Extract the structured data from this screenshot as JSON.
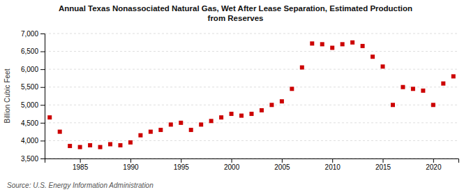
{
  "chart_data": {
    "type": "scatter",
    "title": "Annual Texas Nonassociated Natural Gas, Wet After Lease Separation, Estimated Production\nfrom Reserves",
    "ylabel": "Billion Cubic Feet",
    "annotations": [
      "Source: U.S. Energy Information Administration"
    ],
    "color": "#cc0000",
    "marker": "square",
    "grid": true,
    "xlim": [
      1981.5,
      2022.5
    ],
    "xticks": [
      1985,
      1990,
      1995,
      2000,
      2005,
      2010,
      2015,
      2020
    ],
    "ylim": [
      3500,
      7000
    ],
    "yticks": [
      {
        "value": 3500,
        "label": "3,500"
      },
      {
        "value": 4000,
        "label": "4,000"
      },
      {
        "value": 4500,
        "label": "4,500"
      },
      {
        "value": 5000,
        "label": "5,000"
      },
      {
        "value": 5500,
        "label": "5,500"
      },
      {
        "value": 6000,
        "label": "6,000"
      },
      {
        "value": 6500,
        "label": "6,500"
      },
      {
        "value": 7000,
        "label": "7,000"
      }
    ],
    "x": [
      1982,
      1983,
      1984,
      1985,
      1986,
      1987,
      1988,
      1989,
      1990,
      1991,
      1992,
      1993,
      1994,
      1995,
      1996,
      1997,
      1998,
      1999,
      2000,
      2001,
      2002,
      2003,
      2004,
      2005,
      2006,
      2007,
      2008,
      2009,
      2010,
      2011,
      2012,
      2013,
      2014,
      2015,
      2016,
      2017,
      2018,
      2019,
      2020,
      2021,
      2022
    ],
    "values": [
      4650,
      4250,
      3850,
      3820,
      3870,
      3820,
      3900,
      3870,
      3950,
      4150,
      4250,
      4300,
      4450,
      4500,
      4300,
      4450,
      4550,
      4650,
      4750,
      4700,
      4750,
      4850,
      5000,
      5100,
      5450,
      6050,
      6720,
      6700,
      6600,
      6700,
      6750,
      6650,
      6350,
      6075,
      5000,
      5500,
      5450,
      5400,
      5000,
      5600,
      5800
    ]
  }
}
